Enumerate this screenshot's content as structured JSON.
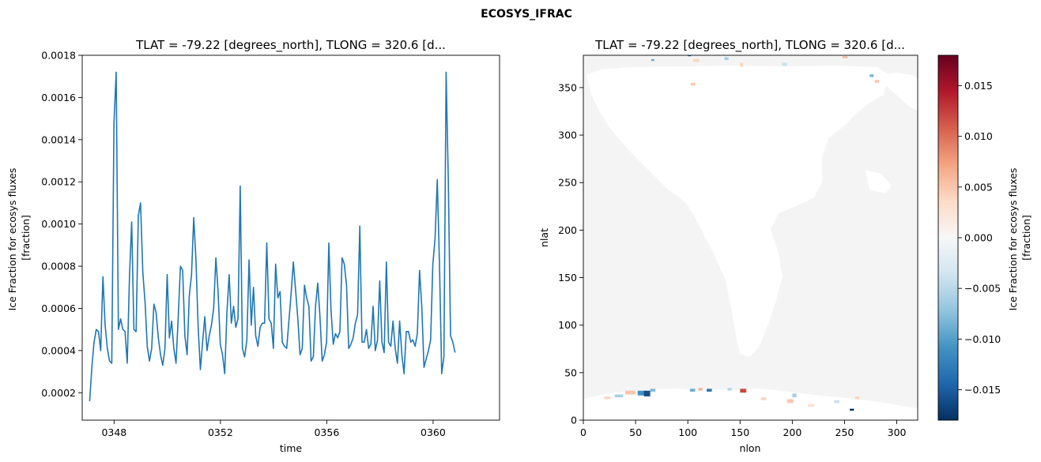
{
  "figure": {
    "suptitle": "ECOSYS_IFRAC"
  },
  "colors": {
    "line": "#1f77b4",
    "ocean": "#f4f4f4",
    "land": "#ffffff"
  },
  "chart_data": [
    {
      "type": "line",
      "title": "TLAT = -79.22 [degrees_north], TLONG = 320.6 [d...",
      "xlabel": "time",
      "ylabel": [
        "Ice Fraction for ecosys fluxes",
        "[fraction]"
      ],
      "xlim": [
        346.8,
        362.5
      ],
      "ylim": [
        7e-05,
        0.0018
      ],
      "xticks": [
        348,
        352,
        356,
        360
      ],
      "xticklabels": [
        "0348",
        "0352",
        "0356",
        "0360"
      ],
      "yticks": [
        0.0002,
        0.0004,
        0.0006,
        0.0008,
        0.001,
        0.0012,
        0.0014,
        0.0016,
        0.0018
      ],
      "yticklabels": [
        "0.0002",
        "0.0004",
        "0.0006",
        "0.0008",
        "0.0010",
        "0.0012",
        "0.0014",
        "0.0016",
        "0.0018"
      ],
      "series": [
        {
          "x_start": 347.08,
          "x_step": 0.0833,
          "values": [
            0.00016,
            0.00032,
            0.00044,
            0.0005,
            0.00049,
            0.0004,
            0.00075,
            0.00052,
            0.00041,
            0.00035,
            0.00034,
            0.00148,
            0.00172,
            0.0005,
            0.00055,
            0.0005,
            0.00049,
            0.00034,
            0.00075,
            0.00101,
            0.0005,
            0.00049,
            0.00104,
            0.0011,
            0.00077,
            0.00063,
            0.00042,
            0.00035,
            0.00041,
            0.00062,
            0.00058,
            0.00046,
            0.00038,
            0.00033,
            0.00041,
            0.00076,
            0.00046,
            0.00054,
            0.00041,
            0.00034,
            0.00056,
            0.0008,
            0.00078,
            0.00047,
            0.00038,
            0.00066,
            0.00076,
            0.00103,
            0.00083,
            0.00051,
            0.00031,
            0.00044,
            0.00056,
            0.0004,
            0.00047,
            0.00052,
            0.0006,
            0.00084,
            0.00068,
            0.00043,
            0.00038,
            0.00029,
            0.00058,
            0.00076,
            0.00053,
            0.00061,
            0.00051,
            0.00055,
            0.00118,
            0.00041,
            0.00037,
            0.00045,
            0.00083,
            0.00052,
            0.0007,
            0.00047,
            0.00042,
            0.00051,
            0.00053,
            0.00053,
            0.00091,
            0.00055,
            0.00053,
            0.00041,
            0.00081,
            0.00065,
            0.00068,
            0.00044,
            0.00042,
            0.00041,
            0.00054,
            0.00067,
            0.00082,
            0.00069,
            0.00055,
            0.00038,
            0.00041,
            0.00071,
            0.00065,
            0.00061,
            0.00035,
            0.00037,
            0.00061,
            0.00072,
            0.00056,
            0.00035,
            0.00038,
            0.00044,
            0.00091,
            0.00059,
            0.00043,
            0.00048,
            0.00046,
            0.00049,
            0.00084,
            0.00081,
            0.00071,
            0.00041,
            0.00043,
            0.00046,
            0.00053,
            0.00057,
            0.00099,
            0.00044,
            0.00044,
            0.0005,
            0.00041,
            0.00043,
            0.00061,
            0.0004,
            0.00045,
            0.00073,
            0.00044,
            0.00039,
            0.00082,
            0.00044,
            0.00042,
            0.00054,
            0.00041,
            0.00034,
            0.00054,
            0.00038,
            0.00029,
            0.00049,
            0.00049,
            0.00044,
            0.00045,
            0.00042,
            0.00048,
            0.00078,
            0.00061,
            0.00032,
            0.00036,
            0.0004,
            0.00045,
            0.00081,
            0.00093,
            0.00121,
            0.00081,
            0.00029,
            0.00037,
            0.00172,
            0.0012,
            0.00047,
            0.00044,
            0.00039
          ]
        }
      ]
    },
    {
      "type": "heatmap",
      "title": "TLAT = -79.22 [degrees_north], TLONG = 320.6 [d...",
      "xlabel": "nlon",
      "ylabel": "nlat",
      "xlim": [
        0,
        320
      ],
      "ylim": [
        0,
        384
      ],
      "xticks": [
        0,
        50,
        100,
        150,
        200,
        250,
        300
      ],
      "xticklabels": [
        "0",
        "50",
        "100",
        "150",
        "200",
        "250",
        "300"
      ],
      "yticks": [
        0,
        50,
        100,
        150,
        200,
        250,
        300,
        350
      ],
      "yticklabels": [
        "0",
        "50",
        "100",
        "150",
        "200",
        "250",
        "300",
        "350"
      ],
      "colorbar": {
        "label": [
          "Ice Fraction for ecosys fluxes",
          "[fraction]"
        ],
        "cmap": "RdBu_r",
        "vmin": -0.018,
        "vmax": 0.018,
        "ticks": [
          -0.015,
          -0.01,
          -0.005,
          0,
          0.005,
          0.01,
          0.015
        ],
        "ticklabels": [
          "−0.015",
          "−0.010",
          "−0.005",
          "0.000",
          "0.005",
          "0.010",
          "0.015"
        ]
      },
      "features": [
        {
          "x": 30,
          "y": 24,
          "w": 8,
          "h": 3,
          "v": -0.006
        },
        {
          "x": 40,
          "y": 27,
          "w": 10,
          "h": 4,
          "v": 0.005
        },
        {
          "x": 52,
          "y": 26,
          "w": 8,
          "h": 5,
          "v": -0.011
        },
        {
          "x": 58,
          "y": 25,
          "w": 6,
          "h": 6,
          "v": -0.016
        },
        {
          "x": 64,
          "y": 30,
          "w": 5,
          "h": 3,
          "v": -0.008
        },
        {
          "x": 20,
          "y": 22,
          "w": 6,
          "h": 3,
          "v": 0.004
        },
        {
          "x": 102,
          "y": 30,
          "w": 5,
          "h": 3,
          "v": -0.009
        },
        {
          "x": 110,
          "y": 31,
          "w": 4,
          "h": 3,
          "v": 0.006
        },
        {
          "x": 118,
          "y": 30,
          "w": 5,
          "h": 3,
          "v": -0.013
        },
        {
          "x": 150,
          "y": 29,
          "w": 6,
          "h": 4,
          "v": 0.012
        },
        {
          "x": 138,
          "y": 31,
          "w": 4,
          "h": 3,
          "v": -0.005
        },
        {
          "x": 170,
          "y": 21,
          "w": 5,
          "h": 3,
          "v": 0.004
        },
        {
          "x": 195,
          "y": 18,
          "w": 6,
          "h": 4,
          "v": 0.005
        },
        {
          "x": 200,
          "y": 24,
          "w": 4,
          "h": 4,
          "v": -0.006
        },
        {
          "x": 215,
          "y": 14,
          "w": 6,
          "h": 3,
          "v": 0.003
        },
        {
          "x": 255,
          "y": 10,
          "w": 4,
          "h": 2,
          "v": -0.018
        },
        {
          "x": 240,
          "y": 18,
          "w": 5,
          "h": 3,
          "v": -0.004
        },
        {
          "x": 260,
          "y": 22,
          "w": 4,
          "h": 3,
          "v": 0.004
        },
        {
          "x": 105,
          "y": 377,
          "w": 6,
          "h": 3,
          "v": 0.004
        },
        {
          "x": 135,
          "y": 379,
          "w": 4,
          "h": 3,
          "v": -0.006
        },
        {
          "x": 150,
          "y": 372,
          "w": 3,
          "h": 4,
          "v": 0.004
        },
        {
          "x": 190,
          "y": 373,
          "w": 5,
          "h": 3,
          "v": -0.004
        },
        {
          "x": 248,
          "y": 381,
          "w": 5,
          "h": 2,
          "v": 0.006
        },
        {
          "x": 274,
          "y": 361,
          "w": 4,
          "h": 3,
          "v": -0.008
        },
        {
          "x": 279,
          "y": 355,
          "w": 4,
          "h": 3,
          "v": 0.005
        },
        {
          "x": 103,
          "y": 352,
          "w": 4,
          "h": 3,
          "v": 0.005
        },
        {
          "x": 65,
          "y": 378,
          "w": 3,
          "h": 2,
          "v": -0.009
        },
        {
          "x": 100,
          "y": 383,
          "w": 3,
          "h": 2,
          "v": -0.014
        }
      ]
    }
  ]
}
